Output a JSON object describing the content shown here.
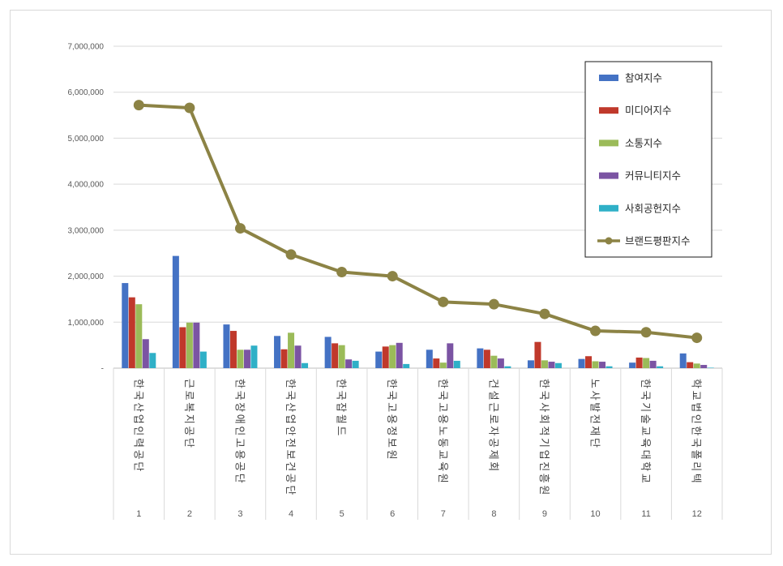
{
  "chart_data": {
    "type": "bar",
    "combo": "bar+line",
    "categories": [
      "1",
      "2",
      "3",
      "4",
      "5",
      "6",
      "7",
      "8",
      "9",
      "10",
      "11",
      "12"
    ],
    "category_names": [
      "한국산업인력공단",
      "근로복지공단",
      "한국장애인고용공단",
      "한국산업안전보건공단",
      "한국잡월드",
      "한국고용정보원",
      "한국고용노동교육원",
      "건설근로자공제회",
      "한국사회적기업진흥원",
      "노사발전재단",
      "한국기술교육대학교",
      "학교법인한국폴리텍"
    ],
    "series": [
      {
        "name": "참여지수",
        "type": "bar",
        "color": "#4472c4",
        "values": [
          1850000,
          2440000,
          950000,
          700000,
          680000,
          360000,
          400000,
          430000,
          170000,
          200000,
          120000,
          320000
        ]
      },
      {
        "name": "미디어지수",
        "type": "bar",
        "color": "#c0392b",
        "values": [
          1540000,
          890000,
          810000,
          410000,
          540000,
          470000,
          210000,
          400000,
          570000,
          260000,
          230000,
          130000
        ]
      },
      {
        "name": "소통지수",
        "type": "bar",
        "color": "#9bbb59",
        "values": [
          1390000,
          990000,
          400000,
          770000,
          500000,
          500000,
          120000,
          270000,
          170000,
          150000,
          220000,
          100000
        ]
      },
      {
        "name": "커뮤니티지수",
        "type": "bar",
        "color": "#7b54a3",
        "values": [
          630000,
          990000,
          400000,
          490000,
          190000,
          550000,
          540000,
          210000,
          140000,
          140000,
          160000,
          70000
        ]
      },
      {
        "name": "사회공헌지수",
        "type": "bar",
        "color": "#2fb0c7",
        "values": [
          330000,
          360000,
          490000,
          110000,
          160000,
          90000,
          160000,
          40000,
          110000,
          40000,
          40000,
          10000
        ]
      },
      {
        "name": "브랜드평판지수",
        "type": "line",
        "color": "#8c8345",
        "values": [
          5720000,
          5660000,
          3040000,
          2470000,
          2090000,
          2000000,
          1440000,
          1390000,
          1180000,
          810000,
          780000,
          660000
        ]
      }
    ],
    "ylim": [
      0,
      7000000
    ],
    "yticks": [
      0,
      1000000,
      2000000,
      3000000,
      4000000,
      5000000,
      6000000,
      7000000
    ],
    "ytick_labels": [
      "-",
      "1,000,000",
      "2,000,000",
      "3,000,000",
      "4,000,000",
      "5,000,000",
      "6,000,000",
      "7,000,000"
    ],
    "grid": true,
    "legend_position": "top-right",
    "title": "",
    "xlabel": "",
    "ylabel": ""
  }
}
